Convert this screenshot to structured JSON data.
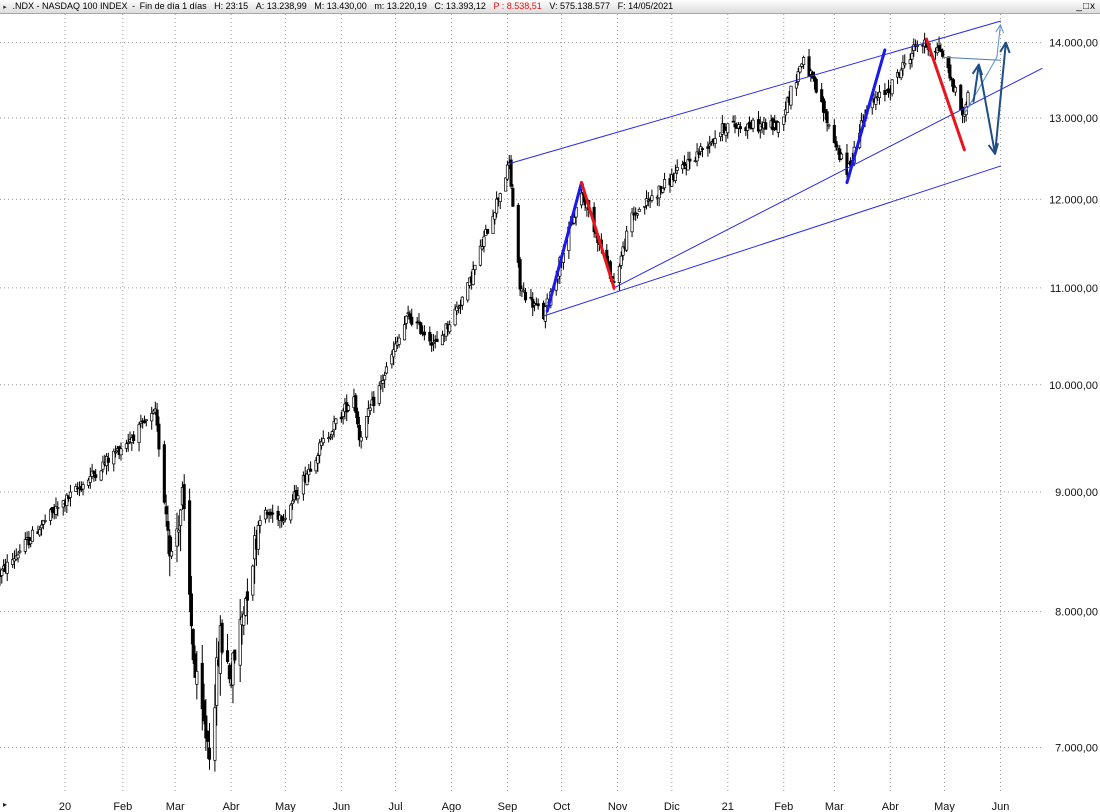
{
  "header": {
    "symbol": ".NDX - NASDAQ 100 INDEX",
    "period": "Fin de día 1 días",
    "fields": [
      {
        "key": "H",
        "text": "H: 23:15",
        "highlight": false
      },
      {
        "key": "A",
        "text": "A: 13.238,99",
        "highlight": false
      },
      {
        "key": "M",
        "text": "M: 13.430,00",
        "highlight": false
      },
      {
        "key": "m",
        "text": "m: 13.220,19",
        "highlight": false
      },
      {
        "key": "C",
        "text": "C: 13.393,12",
        "highlight": false
      },
      {
        "key": "P",
        "text": "P : 8.538,51",
        "highlight": true
      },
      {
        "key": "V",
        "text": "V: 575.138.577",
        "highlight": false
      },
      {
        "key": "F",
        "text": "F: 14/05/2021",
        "highlight": false
      }
    ],
    "window_controls": [
      "_",
      "□",
      "x"
    ]
  },
  "chart_data": {
    "type": "candlestick",
    "scale": "log",
    "ylim": [
      6700,
      14400
    ],
    "grid": true,
    "y_ticks": [
      {
        "value": 7000,
        "label": "7.000,00"
      },
      {
        "value": 8000,
        "label": "8.000,00"
      },
      {
        "value": 9000,
        "label": "9.000,00"
      },
      {
        "value": 10000,
        "label": "10.000,00"
      },
      {
        "value": 11000,
        "label": "11.000,00"
      },
      {
        "value": 12000,
        "label": "12.000,00"
      },
      {
        "value": 13000,
        "label": "13.000,00"
      },
      {
        "value": 14000,
        "label": "14.000,00"
      }
    ],
    "x_ticks": [
      {
        "date": "2019-12-31",
        "label": "20"
      },
      {
        "date": "2020-02-01",
        "label": "Feb"
      },
      {
        "date": "2020-03-01",
        "label": "Mar"
      },
      {
        "date": "2020-04-01",
        "label": "Abr"
      },
      {
        "date": "2020-05-01",
        "label": "May"
      },
      {
        "date": "2020-06-01",
        "label": "Jun"
      },
      {
        "date": "2020-07-01",
        "label": "Jul"
      },
      {
        "date": "2020-08-01",
        "label": "Ago"
      },
      {
        "date": "2020-09-01",
        "label": "Sep"
      },
      {
        "date": "2020-10-01",
        "label": "Oct"
      },
      {
        "date": "2020-11-01",
        "label": "Nov"
      },
      {
        "date": "2020-12-01",
        "label": "Dic"
      },
      {
        "date": "2021-01-01",
        "label": "21"
      },
      {
        "date": "2021-02-01",
        "label": "Feb"
      },
      {
        "date": "2021-03-01",
        "label": "Mar"
      },
      {
        "date": "2021-04-01",
        "label": "Abr"
      },
      {
        "date": "2021-05-01",
        "label": "May"
      },
      {
        "date": "2021-06-01",
        "label": "Jun"
      }
    ],
    "xlim": [
      "2019-11-25",
      "2021-06-24"
    ],
    "price_anchors": [
      {
        "date": "2019-11-25",
        "value": 8300
      },
      {
        "date": "2019-12-20",
        "value": 8750
      },
      {
        "date": "2020-01-15",
        "value": 9150
      },
      {
        "date": "2020-02-19",
        "value": 9718
      },
      {
        "date": "2020-02-28",
        "value": 8450
      },
      {
        "date": "2020-03-05",
        "value": 8950
      },
      {
        "date": "2020-03-12",
        "value": 7500
      },
      {
        "date": "2020-03-16",
        "value": 7200
      },
      {
        "date": "2020-03-20",
        "value": 7000
      },
      {
        "date": "2020-03-26",
        "value": 7800
      },
      {
        "date": "2020-04-01",
        "value": 7500
      },
      {
        "date": "2020-04-17",
        "value": 8800
      },
      {
        "date": "2020-05-01",
        "value": 8800
      },
      {
        "date": "2020-05-20",
        "value": 9400
      },
      {
        "date": "2020-06-08",
        "value": 9900
      },
      {
        "date": "2020-06-11",
        "value": 9500
      },
      {
        "date": "2020-07-08",
        "value": 10700
      },
      {
        "date": "2020-07-24",
        "value": 10400
      },
      {
        "date": "2020-08-10",
        "value": 11000
      },
      {
        "date": "2020-09-02",
        "value": 12420
      },
      {
        "date": "2020-09-08",
        "value": 11000
      },
      {
        "date": "2020-09-21",
        "value": 10700
      },
      {
        "date": "2020-10-12",
        "value": 12100
      },
      {
        "date": "2020-10-30",
        "value": 11050
      },
      {
        "date": "2020-11-09",
        "value": 11800
      },
      {
        "date": "2020-12-31",
        "value": 12900
      },
      {
        "date": "2021-01-29",
        "value": 12900
      },
      {
        "date": "2021-02-12",
        "value": 13800
      },
      {
        "date": "2021-03-08",
        "value": 12300
      },
      {
        "date": "2021-03-18",
        "value": 13100
      },
      {
        "date": "2021-04-01",
        "value": 13400
      },
      {
        "date": "2021-04-16",
        "value": 14000
      },
      {
        "date": "2021-04-29",
        "value": 13900
      },
      {
        "date": "2021-05-12",
        "value": 13000
      },
      {
        "date": "2021-05-14",
        "value": 13393
      }
    ],
    "trendlines": [
      {
        "name": "channel-upper",
        "color": "#2a2ae6",
        "width": 1,
        "from": {
          "date": "2020-09-02",
          "value": 12430
        },
        "to": {
          "date": "2021-06-01",
          "value": 14300
        }
      },
      {
        "name": "channel-lower",
        "color": "#2a2ae6",
        "width": 1,
        "from": {
          "date": "2020-09-21",
          "value": 10700
        },
        "to": {
          "date": "2021-06-01",
          "value": 12400
        }
      },
      {
        "name": "support-line",
        "color": "#2a2ae6",
        "width": 1,
        "from": {
          "date": "2020-10-30",
          "value": 11000
        },
        "to": {
          "date": "2021-06-24",
          "value": 13650
        }
      },
      {
        "name": "leg-up-sep-oct",
        "color": "#1a1aee",
        "width": 3,
        "from": {
          "date": "2020-09-23",
          "value": 10750
        },
        "to": {
          "date": "2020-10-12",
          "value": 12200
        }
      },
      {
        "name": "leg-down-oct",
        "color": "#e8141e",
        "width": 3,
        "from": {
          "date": "2020-10-12",
          "value": 12200
        },
        "to": {
          "date": "2020-10-30",
          "value": 11000
        }
      },
      {
        "name": "leg-up-mar-apr",
        "color": "#1a1aee",
        "width": 3,
        "from": {
          "date": "2021-03-08",
          "value": 12200
        },
        "to": {
          "date": "2021-03-29",
          "value": 13900
        }
      },
      {
        "name": "leg-down-apr-may",
        "color": "#e8141e",
        "width": 3,
        "from": {
          "date": "2021-04-21",
          "value": 14050
        },
        "to": {
          "date": "2021-05-12",
          "value": 12600
        }
      },
      {
        "name": "resistance-flat",
        "color": "#4a7ab8",
        "width": 1,
        "from": {
          "date": "2021-04-30",
          "value": 13800
        },
        "to": {
          "date": "2021-06-01",
          "value": 13760
        }
      }
    ],
    "projection_arrows": [
      {
        "name": "projection-bull-thin",
        "color": "#5a8fd0",
        "width": 1,
        "points": [
          {
            "date": "2021-05-12",
            "value": 13050
          },
          {
            "date": "2021-05-30",
            "value": 13800
          },
          {
            "date": "2021-06-01",
            "value": 14250
          }
        ]
      },
      {
        "name": "projection-main",
        "color": "#1f4e86",
        "width": 2,
        "points": [
          {
            "date": "2021-05-17",
            "value": 13200
          },
          {
            "date": "2021-05-20",
            "value": 13700
          },
          {
            "date": "2021-05-29",
            "value": 12550
          },
          {
            "date": "2021-06-04",
            "value": 14000
          }
        ]
      }
    ]
  }
}
